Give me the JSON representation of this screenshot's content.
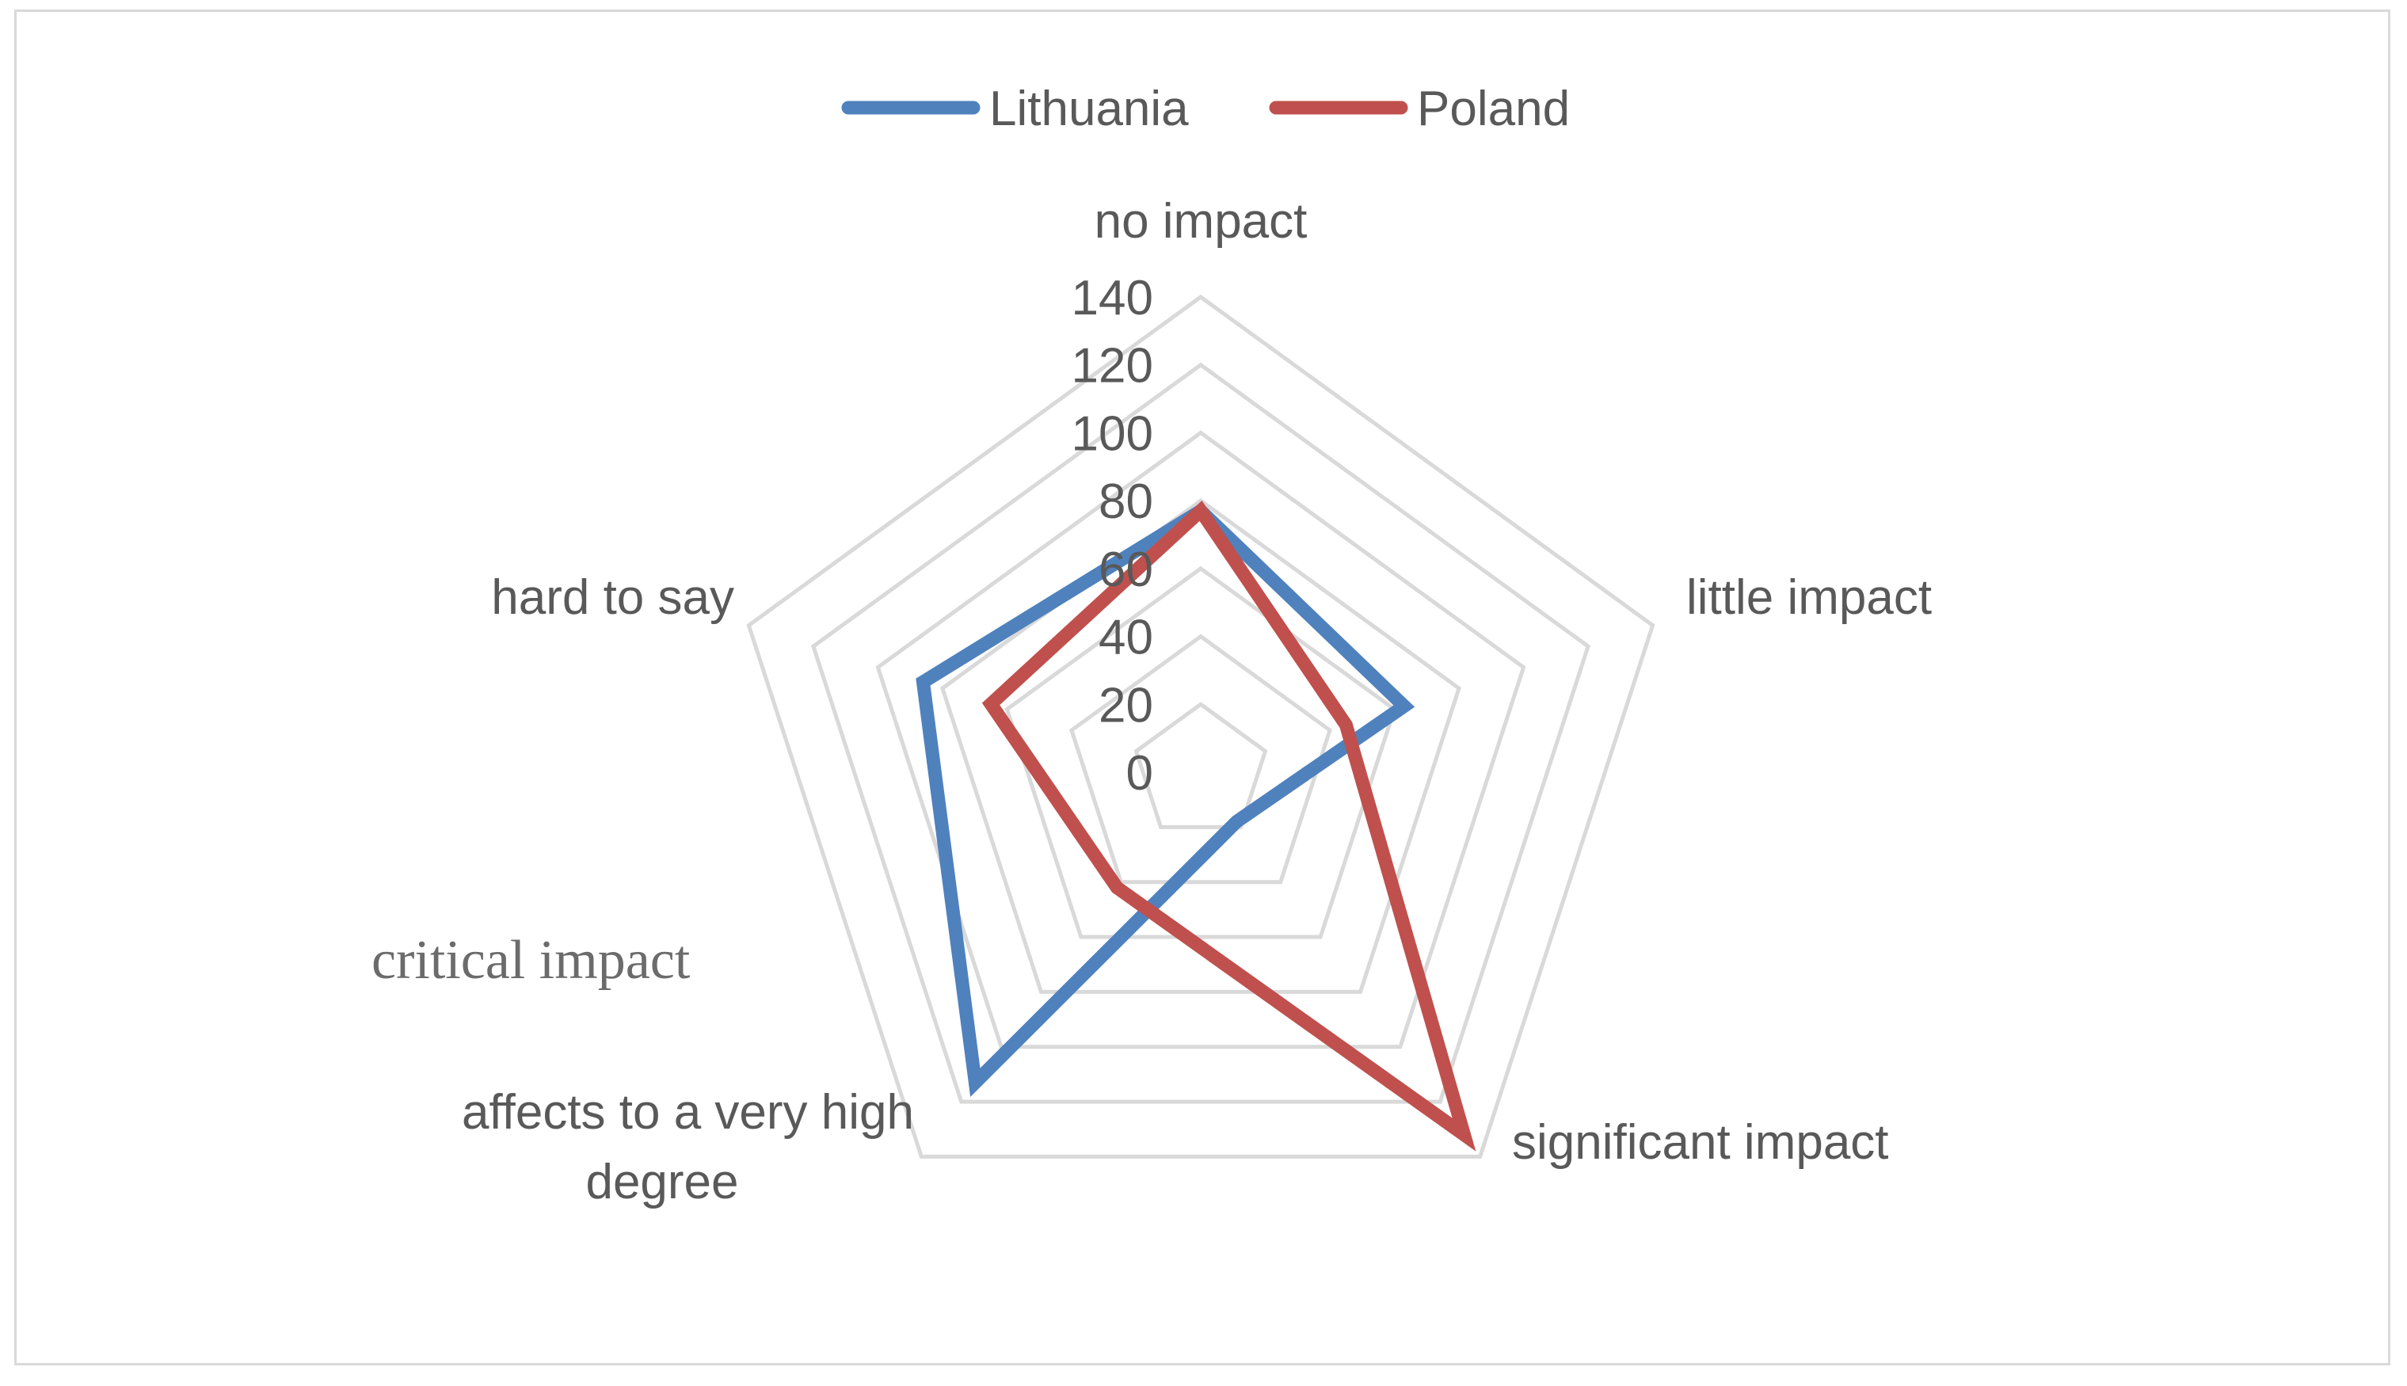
{
  "chart_data": {
    "type": "radar",
    "title": "",
    "axes": [
      "no impact",
      "little impact",
      "significant impact",
      "affects to a very high degree",
      "hard to say"
    ],
    "axis_label_lines": [
      [
        "no impact"
      ],
      [
        "little impact"
      ],
      [
        "significant impact"
      ],
      [
        "affects to a very high",
        "degree"
      ],
      [
        "hard to say"
      ]
    ],
    "rlim": [
      0,
      140
    ],
    "ticks": [
      0,
      20,
      40,
      60,
      80,
      100,
      120,
      140
    ],
    "tick_labels": [
      "0",
      "20",
      "40",
      "60",
      "80",
      "100",
      "120",
      "140"
    ],
    "grid": true,
    "legend_position": "top",
    "series": [
      {
        "name": "Lithuania",
        "color": "#4f81bd",
        "values": [
          77,
          63,
          18,
          113,
          86
        ]
      },
      {
        "name": "Poland",
        "color": "#c0504d",
        "values": [
          77,
          45,
          132,
          42,
          65
        ]
      }
    ],
    "annotations": [
      "critical impact"
    ]
  }
}
